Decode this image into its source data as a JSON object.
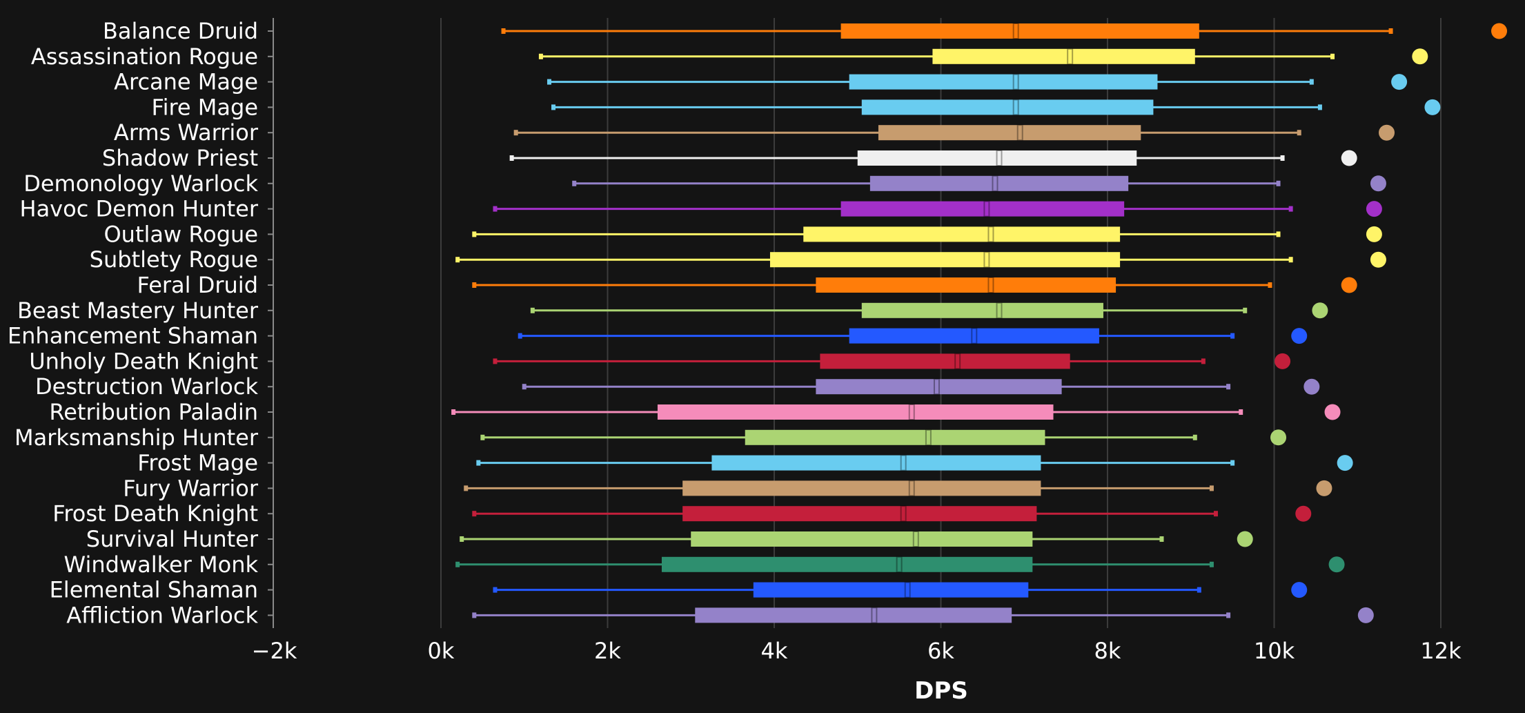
{
  "chart_data": {
    "type": "box",
    "xlabel": "DPS",
    "xlim": [
      -2000,
      12000
    ],
    "x_ticks": [
      -2000,
      0,
      2000,
      4000,
      6000,
      8000,
      10000,
      12000
    ],
    "x_tick_labels": [
      "−2k",
      "0k",
      "2k",
      "4k",
      "6k",
      "8k",
      "10k",
      "12k"
    ],
    "grid": "vertical",
    "series": [
      {
        "name": "Balance Druid",
        "color": "#ff7d0a",
        "min": 750,
        "q1": 4800,
        "median": 6900,
        "q3": 9100,
        "max": 11400,
        "outlier": 12700
      },
      {
        "name": "Assassination Rogue",
        "color": "#fff468",
        "min": 1200,
        "q1": 5900,
        "median": 7550,
        "q3": 9050,
        "max": 10700,
        "outlier": 11750
      },
      {
        "name": "Arcane Mage",
        "color": "#69ccf0",
        "min": 1300,
        "q1": 4900,
        "median": 6900,
        "q3": 8600,
        "max": 10450,
        "outlier": 11500
      },
      {
        "name": "Fire Mage",
        "color": "#69ccf0",
        "min": 1350,
        "q1": 5050,
        "median": 6900,
        "q3": 8550,
        "max": 10550,
        "outlier": 11900
      },
      {
        "name": "Arms Warrior",
        "color": "#c79c6e",
        "min": 900,
        "q1": 5250,
        "median": 6950,
        "q3": 8400,
        "max": 10300,
        "outlier": 11350
      },
      {
        "name": "Shadow Priest",
        "color": "#f0f0f0",
        "min": 850,
        "q1": 5000,
        "median": 6700,
        "q3": 8350,
        "max": 10100,
        "outlier": 10900
      },
      {
        "name": "Demonology Warlock",
        "color": "#9482c9",
        "min": 1600,
        "q1": 5150,
        "median": 6650,
        "q3": 8250,
        "max": 10050,
        "outlier": 11250
      },
      {
        "name": "Havoc Demon Hunter",
        "color": "#a330c9",
        "min": 650,
        "q1": 4800,
        "median": 6550,
        "q3": 8200,
        "max": 10200,
        "outlier": 11200
      },
      {
        "name": "Outlaw Rogue",
        "color": "#fff468",
        "min": 400,
        "q1": 4350,
        "median": 6600,
        "q3": 8150,
        "max": 10050,
        "outlier": 11200
      },
      {
        "name": "Subtlety Rogue",
        "color": "#fff468",
        "min": 200,
        "q1": 3950,
        "median": 6550,
        "q3": 8150,
        "max": 10200,
        "outlier": 11250
      },
      {
        "name": "Feral Druid",
        "color": "#ff7d0a",
        "min": 400,
        "q1": 4500,
        "median": 6600,
        "q3": 8100,
        "max": 9950,
        "outlier": 10900
      },
      {
        "name": "Beast Mastery Hunter",
        "color": "#abd473",
        "min": 1100,
        "q1": 5050,
        "median": 6700,
        "q3": 7950,
        "max": 9650,
        "outlier": 10550
      },
      {
        "name": "Enhancement Shaman",
        "color": "#2459ff",
        "min": 950,
        "q1": 4900,
        "median": 6400,
        "q3": 7900,
        "max": 9500,
        "outlier": 10300
      },
      {
        "name": "Unholy Death Knight",
        "color": "#c41f3b",
        "min": 650,
        "q1": 4550,
        "median": 6200,
        "q3": 7550,
        "max": 9150,
        "outlier": 10100
      },
      {
        "name": "Destruction Warlock",
        "color": "#9482c9",
        "min": 1000,
        "q1": 4500,
        "median": 5950,
        "q3": 7450,
        "max": 9450,
        "outlier": 10450
      },
      {
        "name": "Retribution Paladin",
        "color": "#f58cba",
        "min": 150,
        "q1": 2600,
        "median": 5650,
        "q3": 7350,
        "max": 9600,
        "outlier": 10700
      },
      {
        "name": "Marksmanship Hunter",
        "color": "#abd473",
        "min": 500,
        "q1": 3650,
        "median": 5850,
        "q3": 7250,
        "max": 9050,
        "outlier": 10050
      },
      {
        "name": "Frost Mage",
        "color": "#69ccf0",
        "min": 450,
        "q1": 3250,
        "median": 5550,
        "q3": 7200,
        "max": 9500,
        "outlier": 10850
      },
      {
        "name": "Fury Warrior",
        "color": "#c79c6e",
        "min": 300,
        "q1": 2900,
        "median": 5650,
        "q3": 7200,
        "max": 9250,
        "outlier": 10600
      },
      {
        "name": "Frost Death Knight",
        "color": "#c41f3b",
        "min": 400,
        "q1": 2900,
        "median": 5550,
        "q3": 7150,
        "max": 9300,
        "outlier": 10350
      },
      {
        "name": "Survival Hunter",
        "color": "#abd473",
        "min": 250,
        "q1": 3000,
        "median": 5700,
        "q3": 7100,
        "max": 8650,
        "outlier": 9650
      },
      {
        "name": "Windwalker Monk",
        "color": "#2e8f6f",
        "min": 200,
        "q1": 2650,
        "median": 5500,
        "q3": 7100,
        "max": 9250,
        "outlier": 10750
      },
      {
        "name": "Elemental Shaman",
        "color": "#2459ff",
        "min": 650,
        "q1": 3750,
        "median": 5600,
        "q3": 7050,
        "max": 9100,
        "outlier": 10300
      },
      {
        "name": "Affliction Warlock",
        "color": "#9482c9",
        "min": 400,
        "q1": 3050,
        "median": 5200,
        "q3": 6850,
        "max": 9450,
        "outlier": 11100
      }
    ]
  }
}
